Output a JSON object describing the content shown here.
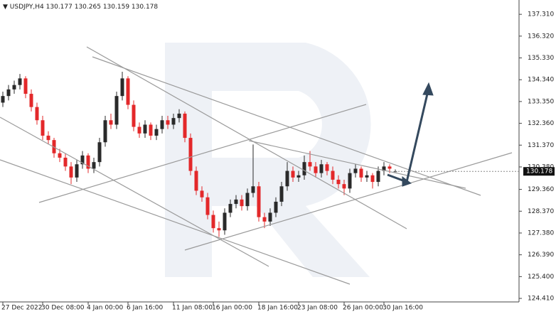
{
  "chart_data": {
    "type": "candlestick",
    "symbol": "USDJPY,H4",
    "header_values": [
      130.177,
      130.265,
      130.159,
      130.178
    ],
    "last_price": 130.178,
    "up_color": "#2a2a2a",
    "down_color": "#e3282a",
    "ylim": [
      124.25,
      137.96
    ],
    "yticks": [
      {
        "value": 137.31,
        "label": "137.310"
      },
      {
        "value": 136.32,
        "label": "136.320"
      },
      {
        "value": 135.33,
        "label": "135.330"
      },
      {
        "value": 134.34,
        "label": "134.340"
      },
      {
        "value": 133.35,
        "label": "133.350"
      },
      {
        "value": 132.36,
        "label": "132.360"
      },
      {
        "value": 131.37,
        "label": "131.370"
      },
      {
        "value": 130.38,
        "label": "130.380"
      },
      {
        "value": 129.36,
        "label": "129.360"
      },
      {
        "value": 128.37,
        "label": "128.370"
      },
      {
        "value": 127.38,
        "label": "127.380"
      },
      {
        "value": 126.39,
        "label": "126.390"
      },
      {
        "value": 125.4,
        "label": "125.400"
      },
      {
        "value": 124.41,
        "label": "124.410"
      }
    ],
    "categories": [
      "27 Dec 2022",
      null,
      null,
      null,
      null,
      null,
      null,
      "30 Dec 08:00",
      null,
      null,
      null,
      null,
      null,
      null,
      null,
      "4 Jan 00:00",
      null,
      null,
      null,
      null,
      null,
      null,
      "6 Jan 16:00",
      null,
      null,
      null,
      null,
      null,
      null,
      null,
      "11 Jan 08:00",
      null,
      null,
      null,
      null,
      null,
      null,
      "16 Jan 00:00",
      null,
      null,
      null,
      null,
      null,
      null,
      null,
      "18 Jan 16:00",
      null,
      null,
      null,
      null,
      null,
      null,
      "23 Jan 08:00",
      null,
      null,
      null,
      null,
      null,
      null,
      null,
      "26 Jan 00:00",
      null,
      null,
      null,
      null,
      null,
      null,
      "30 Jan 16:00",
      null,
      null
    ],
    "ohlc": [
      [
        133.3,
        133.8,
        133.1,
        133.6
      ],
      [
        133.6,
        134.1,
        133.4,
        133.9
      ],
      [
        133.9,
        134.3,
        133.7,
        134.1
      ],
      [
        134.1,
        134.6,
        133.9,
        134.4
      ],
      [
        134.4,
        134.5,
        133.5,
        133.7
      ],
      [
        133.7,
        133.9,
        132.9,
        133.1
      ],
      [
        133.1,
        133.3,
        132.3,
        132.5
      ],
      [
        132.5,
        132.7,
        131.6,
        131.8
      ],
      [
        131.8,
        132.0,
        131.4,
        131.6
      ],
      [
        131.6,
        131.7,
        130.8,
        131.0
      ],
      [
        131.0,
        131.2,
        130.6,
        130.8
      ],
      [
        130.8,
        131.0,
        130.2,
        130.4
      ],
      [
        130.4,
        130.6,
        129.6,
        129.9
      ],
      [
        129.9,
        130.7,
        129.7,
        130.5
      ],
      [
        130.5,
        131.1,
        130.3,
        130.9
      ],
      [
        130.9,
        131.0,
        130.1,
        130.3
      ],
      [
        130.3,
        130.8,
        130.1,
        130.6
      ],
      [
        130.6,
        131.7,
        130.4,
        131.5
      ],
      [
        131.5,
        132.7,
        131.3,
        132.5
      ],
      [
        132.5,
        132.8,
        132.1,
        132.3
      ],
      [
        132.3,
        133.8,
        132.1,
        133.6
      ],
      [
        133.6,
        134.7,
        133.4,
        134.4
      ],
      [
        134.4,
        134.5,
        133.0,
        133.2
      ],
      [
        133.2,
        133.4,
        132.0,
        132.2
      ],
      [
        132.2,
        132.4,
        131.7,
        131.9
      ],
      [
        131.9,
        132.5,
        131.7,
        132.3
      ],
      [
        132.3,
        132.4,
        131.6,
        131.8
      ],
      [
        131.8,
        132.3,
        131.6,
        132.1
      ],
      [
        132.1,
        132.7,
        131.9,
        132.5
      ],
      [
        132.5,
        132.7,
        132.1,
        132.3
      ],
      [
        132.3,
        132.8,
        132.1,
        132.6
      ],
      [
        132.6,
        133.0,
        132.4,
        132.8
      ],
      [
        132.8,
        132.9,
        131.5,
        131.7
      ],
      [
        131.7,
        131.9,
        130.0,
        130.2
      ],
      [
        130.2,
        130.4,
        129.1,
        129.3
      ],
      [
        129.3,
        129.5,
        128.8,
        129.0
      ],
      [
        129.0,
        129.2,
        128.0,
        128.2
      ],
      [
        128.2,
        128.4,
        127.4,
        127.6
      ],
      [
        127.6,
        127.9,
        127.2,
        127.5
      ],
      [
        127.5,
        128.5,
        127.3,
        128.3
      ],
      [
        128.3,
        128.9,
        128.1,
        128.7
      ],
      [
        128.7,
        129.1,
        128.5,
        128.9
      ],
      [
        128.9,
        129.1,
        128.4,
        128.6
      ],
      [
        128.6,
        129.4,
        128.4,
        129.2
      ],
      [
        129.2,
        131.4,
        129.0,
        129.5
      ],
      [
        129.5,
        129.7,
        127.9,
        128.1
      ],
      [
        128.1,
        128.3,
        127.6,
        127.9
      ],
      [
        127.9,
        128.5,
        127.7,
        128.3
      ],
      [
        128.3,
        129.0,
        128.1,
        128.8
      ],
      [
        128.8,
        129.7,
        128.6,
        129.5
      ],
      [
        129.5,
        130.6,
        129.3,
        130.2
      ],
      [
        130.2,
        130.4,
        129.7,
        129.9
      ],
      [
        129.9,
        130.2,
        129.7,
        130.0
      ],
      [
        130.0,
        130.9,
        129.8,
        130.6
      ],
      [
        130.6,
        131.1,
        130.2,
        130.4
      ],
      [
        130.4,
        130.6,
        129.9,
        130.1
      ],
      [
        130.1,
        130.7,
        129.9,
        130.5
      ],
      [
        130.5,
        130.6,
        130.0,
        130.2
      ],
      [
        130.2,
        130.4,
        129.6,
        129.8
      ],
      [
        129.8,
        130.0,
        129.4,
        129.6
      ],
      [
        129.6,
        129.8,
        129.1,
        129.4
      ],
      [
        129.4,
        130.3,
        129.2,
        130.1
      ],
      [
        130.1,
        130.5,
        129.9,
        130.3
      ],
      [
        130.3,
        130.4,
        129.7,
        129.9
      ],
      [
        129.9,
        130.2,
        129.7,
        130.0
      ],
      [
        130.0,
        130.1,
        129.4,
        129.7
      ],
      [
        129.7,
        130.4,
        129.5,
        130.2
      ],
      [
        130.2,
        130.6,
        130.0,
        130.4
      ],
      [
        130.4,
        130.5,
        130.1,
        130.3
      ],
      [
        130.177,
        130.265,
        130.159,
        130.178
      ]
    ]
  }
}
